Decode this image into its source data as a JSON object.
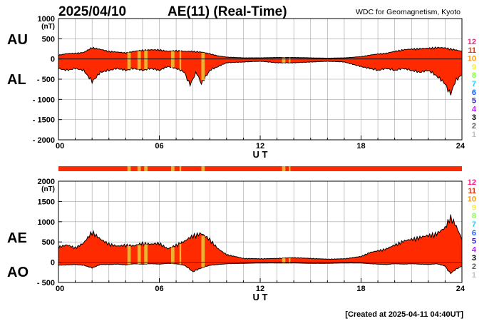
{
  "header": {
    "date": "2025/04/10",
    "title": "AE(11) (Real-Time)",
    "source": "WDC for Geomagnetism, Kyoto"
  },
  "footer": {
    "created": "[Created at 2025-04-11 04:40UT]"
  },
  "station_legend": [
    "12",
    "11",
    "10",
    "9",
    "8",
    "7",
    "6",
    "5",
    "4",
    "3",
    "2",
    "1"
  ],
  "colors": {
    "fill": "#ff2a00",
    "outline": "#000000",
    "highlight": "#f0b030",
    "grid": "#a0a0a0",
    "station_colors": [
      "#ff1a8c",
      "#ff2a00",
      "#ff9900",
      "#f0f040",
      "#80ff40",
      "#20d0ff",
      "#1060ff",
      "#3020c0",
      "#c020ff",
      "#000000",
      "#606060",
      "#c0c0c0"
    ]
  },
  "chart_data": [
    {
      "type": "area",
      "panel": "AU/AL",
      "left_labels": [
        "AU",
        "AL"
      ],
      "ylabel": "(nT)",
      "xlabel": "U T",
      "x_ticks": [
        0,
        6,
        12,
        18,
        24
      ],
      "x_tick_labels": [
        "00",
        "06",
        "12",
        "18",
        "24"
      ],
      "xlim": [
        0,
        24
      ],
      "ylim": [
        -2000,
        1000
      ],
      "y_ticks": [
        1000,
        500,
        0,
        -500,
        -1000,
        -1500,
        -2000
      ],
      "y_tick_labels": [
        "1000",
        "500",
        "0",
        "- 500",
        "- 1000",
        "- 1500",
        "- 2000"
      ],
      "grid": true,
      "highlight_bands_ut": [
        [
          4.1,
          4.3
        ],
        [
          4.7,
          4.9
        ],
        [
          5.1,
          5.3
        ],
        [
          6.7,
          6.9
        ],
        [
          7.2,
          7.3
        ],
        [
          8.5,
          8.7
        ],
        [
          13.3,
          13.5
        ],
        [
          13.7,
          13.8
        ]
      ],
      "series": [
        {
          "name": "AU",
          "x": [
            0,
            0.5,
            1,
            1.5,
            2,
            2.5,
            3,
            3.5,
            4,
            4.5,
            5,
            5.5,
            6,
            6.5,
            7,
            7.5,
            8,
            8.5,
            9,
            9.5,
            10,
            11,
            12,
            13,
            14,
            15,
            16,
            17,
            18,
            18.5,
            19,
            19.5,
            20,
            20.5,
            21,
            21.5,
            22,
            22.5,
            23,
            23.5,
            24
          ],
          "values": [
            100,
            140,
            150,
            170,
            300,
            250,
            200,
            180,
            160,
            200,
            230,
            240,
            240,
            200,
            220,
            200,
            200,
            180,
            140,
            80,
            50,
            30,
            30,
            40,
            40,
            30,
            20,
            30,
            60,
            100,
            130,
            150,
            200,
            240,
            260,
            270,
            280,
            300,
            290,
            250,
            200
          ]
        },
        {
          "name": "AL",
          "x": [
            0,
            0.5,
            1,
            1.5,
            2,
            2.5,
            3,
            3.5,
            4,
            4.5,
            5,
            5.5,
            6,
            6.5,
            7,
            7.5,
            7.8,
            8.2,
            8.5,
            9,
            9.5,
            10,
            11,
            12,
            13,
            14,
            15,
            16,
            17,
            18,
            18.5,
            19,
            19.5,
            20,
            20.5,
            21,
            21.5,
            22,
            22.5,
            23,
            23.3,
            23.6,
            24
          ],
          "values": [
            -250,
            -300,
            -250,
            -300,
            -600,
            -350,
            -300,
            -250,
            -300,
            -250,
            -300,
            -250,
            -300,
            -200,
            -250,
            -350,
            -700,
            -350,
            -650,
            -300,
            -200,
            -100,
            -80,
            -60,
            -100,
            -100,
            -80,
            -60,
            -80,
            -200,
            -250,
            -300,
            -250,
            -300,
            -250,
            -300,
            -350,
            -300,
            -450,
            -650,
            -950,
            -600,
            -400
          ]
        }
      ]
    },
    {
      "type": "area",
      "panel": "AE/AO",
      "left_labels": [
        "AE",
        "AO"
      ],
      "ylabel": "(nT)",
      "xlabel": "U T",
      "x_ticks": [
        0,
        6,
        12,
        18,
        24
      ],
      "x_tick_labels": [
        "00",
        "06",
        "12",
        "18",
        "24"
      ],
      "xlim": [
        0,
        24
      ],
      "ylim": [
        -500,
        2000
      ],
      "y_ticks": [
        2000,
        1500,
        1000,
        500,
        0,
        -500
      ],
      "y_tick_labels": [
        "2000",
        "1500",
        "1000",
        "500",
        "0",
        "- 500"
      ],
      "grid": true,
      "highlight_bands_ut": [
        [
          4.1,
          4.3
        ],
        [
          4.7,
          4.9
        ],
        [
          5.1,
          5.3
        ],
        [
          6.7,
          6.9
        ],
        [
          7.2,
          7.3
        ],
        [
          8.5,
          8.7
        ],
        [
          13.3,
          13.5
        ],
        [
          13.7,
          13.8
        ]
      ],
      "series": [
        {
          "name": "AE",
          "x": [
            0,
            0.5,
            1,
            1.5,
            2,
            2.5,
            3,
            3.5,
            4,
            4.5,
            5,
            5.5,
            6,
            6.5,
            7,
            7.5,
            8,
            8.5,
            9,
            9.5,
            10,
            11,
            12,
            13,
            14,
            15,
            16,
            17,
            18,
            18.5,
            19,
            19.5,
            20,
            20.5,
            21,
            21.5,
            22,
            22.5,
            23,
            23.3,
            23.6,
            24
          ],
          "values": [
            400,
            450,
            380,
            500,
            800,
            600,
            480,
            420,
            450,
            430,
            500,
            470,
            500,
            350,
            450,
            550,
            700,
            750,
            600,
            350,
            200,
            100,
            90,
            100,
            120,
            100,
            80,
            90,
            150,
            250,
            300,
            350,
            450,
            550,
            600,
            650,
            700,
            750,
            900,
            1200,
            1000,
            600
          ]
        },
        {
          "name": "AO",
          "x": [
            0,
            0.5,
            1,
            1.5,
            2,
            2.5,
            3,
            3.5,
            4,
            4.5,
            5,
            5.5,
            6,
            6.5,
            7,
            7.5,
            8,
            8.5,
            9,
            9.5,
            10,
            11,
            12,
            13,
            14,
            15,
            16,
            17,
            18,
            18.5,
            19,
            19.5,
            20,
            20.5,
            21,
            21.5,
            22,
            22.5,
            23,
            23.3,
            23.6,
            24
          ],
          "values": [
            -80,
            -70,
            -60,
            -80,
            -150,
            -60,
            -60,
            -50,
            -70,
            -40,
            -50,
            -40,
            -50,
            -30,
            -40,
            -80,
            -250,
            -150,
            -80,
            -60,
            -40,
            -30,
            -20,
            -20,
            -20,
            -30,
            -30,
            -20,
            -20,
            -40,
            -50,
            -60,
            -40,
            -50,
            -40,
            -50,
            -60,
            -40,
            -100,
            -300,
            -200,
            -100
          ]
        }
      ]
    }
  ]
}
